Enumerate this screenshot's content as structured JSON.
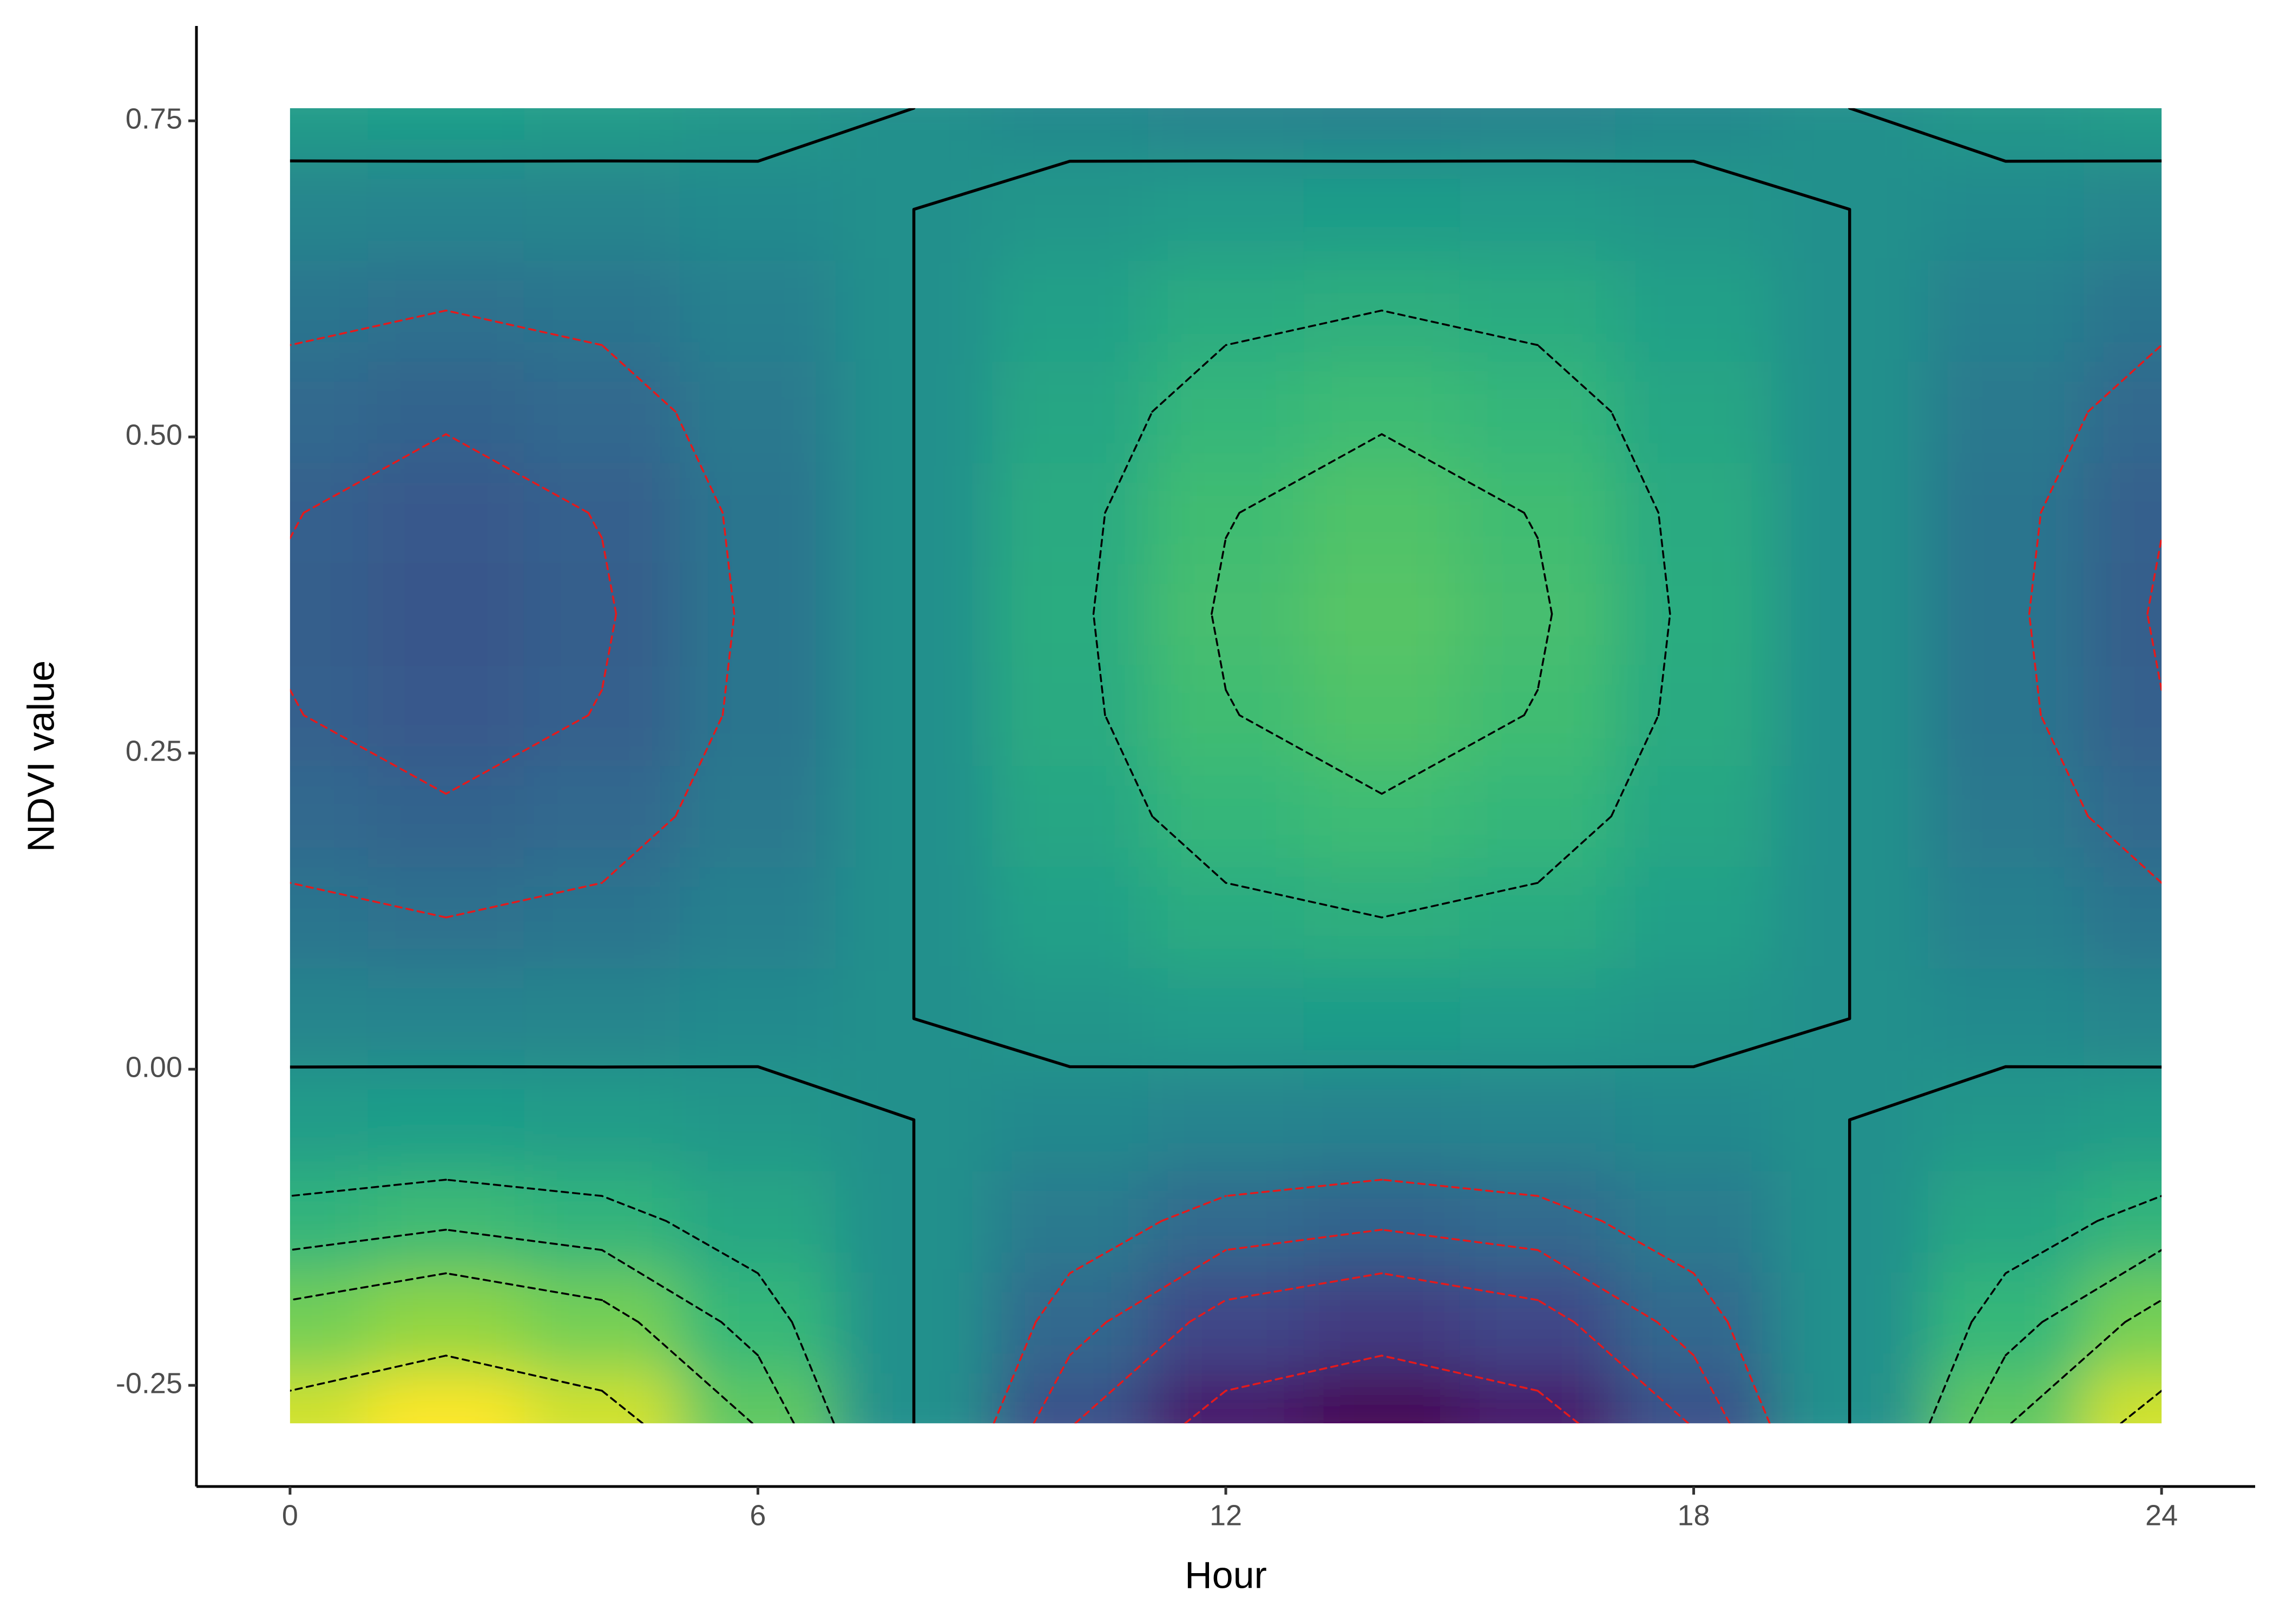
{
  "chart_data": {
    "type": "heatmap",
    "xlabel": "Hour",
    "ylabel": "NDVI value",
    "x": [
      0,
      2,
      4,
      6,
      8,
      10,
      12,
      14,
      16,
      18,
      20,
      22,
      24
    ],
    "y": [
      -0.28,
      -0.2,
      -0.12,
      -0.04,
      0.04,
      0.12,
      0.2,
      0.28,
      0.36,
      0.44,
      0.52,
      0.6,
      0.68,
      0.76
    ],
    "z": [
      [
        0.337,
        0.389,
        0.337,
        0.195,
        0,
        -0.195,
        -0.337,
        -0.389,
        -0.337,
        -0.195,
        0,
        0.195,
        0.337
      ],
      [
        0.222,
        0.256,
        0.222,
        0.128,
        0,
        -0.128,
        -0.222,
        -0.256,
        -0.222,
        -0.128,
        0,
        0.128,
        0.222
      ],
      [
        0.121,
        0.14,
        0.121,
        0.07,
        0,
        -0.07,
        -0.121,
        -0.14,
        -0.121,
        -0.07,
        0,
        0.07,
        0.121
      ],
      [
        0.036,
        0.042,
        0.036,
        0.021,
        0,
        -0.021,
        -0.036,
        -0.042,
        -0.036,
        -0.021,
        0,
        0.021,
        0.036
      ],
      [
        -0.033,
        -0.038,
        -0.033,
        -0.019,
        0,
        0.019,
        0.033,
        0.038,
        0.033,
        0.019,
        0,
        -0.019,
        -0.033
      ],
      [
        -0.087,
        -0.1,
        -0.087,
        -0.05,
        0,
        0.05,
        0.087,
        0.1,
        0.087,
        0.05,
        0,
        -0.05,
        -0.087
      ],
      [
        -0.125,
        -0.144,
        -0.125,
        -0.072,
        0,
        0.072,
        0.125,
        0.144,
        0.125,
        0.072,
        0,
        -0.072,
        -0.125
      ],
      [
        -0.148,
        -0.171,
        -0.148,
        -0.086,
        0,
        0.086,
        0.148,
        0.171,
        0.148,
        0.086,
        0,
        -0.086,
        -0.148
      ],
      [
        -0.156,
        -0.18,
        -0.156,
        -0.09,
        0,
        0.09,
        0.156,
        0.18,
        0.156,
        0.09,
        0,
        -0.09,
        -0.156
      ],
      [
        -0.148,
        -0.171,
        -0.148,
        -0.086,
        0,
        0.086,
        0.148,
        0.171,
        0.148,
        0.086,
        0,
        -0.086,
        -0.148
      ],
      [
        -0.125,
        -0.144,
        -0.125,
        -0.072,
        0,
        0.072,
        0.125,
        0.144,
        0.125,
        0.072,
        0,
        -0.072,
        -0.125
      ],
      [
        -0.087,
        -0.1,
        -0.087,
        -0.05,
        0,
        0.05,
        0.087,
        0.1,
        0.087,
        0.05,
        0,
        -0.05,
        -0.087
      ],
      [
        -0.033,
        -0.038,
        -0.033,
        -0.019,
        0,
        0.019,
        0.033,
        0.038,
        0.033,
        0.019,
        0,
        -0.019,
        -0.033
      ],
      [
        0.036,
        0.042,
        0.036,
        0.021,
        0,
        -0.021,
        -0.036,
        -0.042,
        -0.036,
        -0.021,
        0,
        0.021,
        0.036
      ]
    ],
    "zlim": [
      -0.389,
      0.389
    ],
    "colormap": [
      "#440154",
      "#482878",
      "#3e4989",
      "#31688e",
      "#26828e",
      "#1f9e89",
      "#35b779",
      "#6ece58",
      "#b5de2b",
      "#fde725"
    ],
    "contours": [
      {
        "level": -0.3,
        "color": "#e41a1c",
        "dashed": true
      },
      {
        "level": -0.2,
        "color": "#e41a1c",
        "dashed": true
      },
      {
        "level": -0.15,
        "color": "#e41a1c",
        "dashed": true
      },
      {
        "level": -0.1,
        "color": "#e41a1c",
        "dashed": true
      },
      {
        "level": 0,
        "color": "#000000",
        "dashed": false
      },
      {
        "level": 0.1,
        "color": "#000000",
        "dashed": true
      },
      {
        "level": 0.15,
        "color": "#000000",
        "dashed": true
      },
      {
        "level": 0.2,
        "color": "#000000",
        "dashed": true
      },
      {
        "level": 0.3,
        "color": "#000000",
        "dashed": true
      }
    ],
    "xlim": [
      -1.2,
      25.2
    ],
    "ylim": [
      -0.33,
      0.825
    ],
    "xticks": [
      0,
      6,
      12,
      18,
      24
    ],
    "yticks": [
      -0.25,
      {
        "value": 0,
        "label": "0.00"
      },
      0.25,
      {
        "value": 0.5,
        "label": "0.50"
      },
      0.75
    ]
  }
}
